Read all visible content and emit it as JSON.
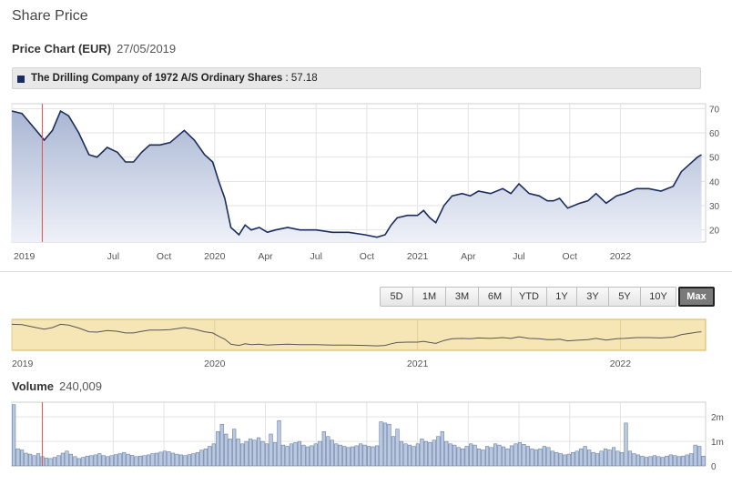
{
  "header": {
    "title": "Share Price"
  },
  "price_chart": {
    "label": "Price Chart (EUR)",
    "date": "27/05/2019",
    "legend": {
      "series_name": "The Drilling Company of 1972 A/S Ordinary Shares",
      "separator": ":",
      "value": "57.18",
      "color": "#1b2c5e"
    }
  },
  "range_buttons": [
    {
      "label": "5D",
      "active": false
    },
    {
      "label": "1M",
      "active": false
    },
    {
      "label": "3M",
      "active": false
    },
    {
      "label": "6M",
      "active": false
    },
    {
      "label": "YTD",
      "active": false
    },
    {
      "label": "1Y",
      "active": false
    },
    {
      "label": "3Y",
      "active": false
    },
    {
      "label": "5Y",
      "active": false
    },
    {
      "label": "10Y",
      "active": false
    },
    {
      "label": "Max",
      "active": true
    }
  ],
  "volume": {
    "label": "Volume",
    "value": "240,009"
  },
  "chart_data": [
    {
      "type": "area",
      "role": "price",
      "x_ticks": [
        "2019",
        "Jul",
        "Oct",
        "2020",
        "Apr",
        "Jul",
        "Oct",
        "2021",
        "Apr",
        "Jul",
        "Oct",
        "2022"
      ],
      "y_ticks": [
        20,
        30,
        40,
        50,
        60,
        70
      ],
      "ylim": [
        15,
        72
      ],
      "xlim": [
        2019.0,
        2022.42
      ],
      "grid": true,
      "colors": {
        "line": "#1b2c5e",
        "fill_top": "#a9b6d3",
        "fill_bottom": "#eef1f8",
        "marker": "#d9534f"
      },
      "marker_x": 2019.15,
      "x": [
        2019.0,
        2019.05,
        2019.1,
        2019.13,
        2019.16,
        2019.2,
        2019.24,
        2019.28,
        2019.33,
        2019.38,
        2019.42,
        2019.47,
        2019.52,
        2019.56,
        2019.6,
        2019.64,
        2019.68,
        2019.73,
        2019.78,
        2019.85,
        2019.9,
        2019.95,
        2019.99,
        2020.02,
        2020.05,
        2020.08,
        2020.12,
        2020.15,
        2020.18,
        2020.22,
        2020.26,
        2020.3,
        2020.36,
        2020.42,
        2020.5,
        2020.58,
        2020.66,
        2020.74,
        2020.8,
        2020.84,
        2020.87,
        2020.9,
        2020.95,
        2021.0,
        2021.03,
        2021.06,
        2021.09,
        2021.13,
        2021.17,
        2021.22,
        2021.26,
        2021.3,
        2021.36,
        2021.42,
        2021.46,
        2021.5,
        2021.55,
        2021.6,
        2021.64,
        2021.67,
        2021.7,
        2021.74,
        2021.8,
        2021.84,
        2021.88,
        2021.93,
        2021.98,
        2022.02,
        2022.08,
        2022.14,
        2022.2,
        2022.26,
        2022.3,
        2022.34,
        2022.38,
        2022.4
      ],
      "y": [
        69,
        68,
        63,
        60,
        57,
        61,
        69,
        67,
        60,
        51,
        50,
        54,
        52,
        48,
        48,
        52,
        55,
        55,
        56,
        61,
        57,
        51,
        48,
        40,
        33,
        21,
        18,
        22,
        20,
        21,
        19,
        20,
        21,
        20,
        20,
        19,
        19,
        18,
        17,
        18,
        22,
        25,
        26,
        26,
        28,
        25,
        23,
        30,
        34,
        35,
        34,
        36,
        35,
        37,
        35,
        39,
        35,
        34,
        32,
        32,
        33,
        29,
        31,
        32,
        35,
        31,
        34,
        35,
        37,
        37,
        36,
        38,
        44,
        47,
        50,
        51
      ],
      "title": "",
      "xlabel": "",
      "ylabel": ""
    },
    {
      "type": "area",
      "role": "navigator",
      "x_ticks": [
        "2019",
        "2020",
        "2021",
        "2022"
      ],
      "colors": {
        "background": "#f7e6b5",
        "border": "#d8b45a",
        "line": "#555555"
      }
    },
    {
      "type": "bar",
      "role": "volume",
      "y_ticks": [
        "2m",
        "1m",
        "0"
      ],
      "y_tick_values": [
        2000000,
        1000000,
        0
      ],
      "ylim": [
        0,
        2600000
      ],
      "colors": {
        "bar": "#b7c8e0",
        "bar_border": "#5a6f96"
      },
      "values": [
        2500000,
        700000,
        650000,
        520000,
        480000,
        420000,
        500000,
        380000,
        320000,
        300000,
        350000,
        420000,
        520000,
        600000,
        480000,
        380000,
        300000,
        350000,
        400000,
        420000,
        450000,
        500000,
        420000,
        380000,
        420000,
        460000,
        500000,
        550000,
        480000,
        430000,
        380000,
        400000,
        420000,
        450000,
        500000,
        520000,
        560000,
        600000,
        580000,
        520000,
        480000,
        450000,
        420000,
        460000,
        500000,
        550000,
        640000,
        700000,
        800000,
        900000,
        1400000,
        1700000,
        1300000,
        1100000,
        1500000,
        1100000,
        900000,
        1000000,
        1100000,
        1050000,
        1150000,
        1000000,
        900000,
        1300000,
        950000,
        1850000,
        850000,
        800000,
        900000,
        950000,
        1000000,
        850000,
        780000,
        820000,
        900000,
        1000000,
        1400000,
        1200000,
        1050000,
        900000,
        850000,
        800000,
        750000,
        780000,
        820000,
        900000,
        850000,
        800000,
        780000,
        820000,
        1800000,
        1750000,
        1700000,
        1200000,
        1500000,
        1000000,
        900000,
        850000,
        800000,
        900000,
        1100000,
        1000000,
        950000,
        1050000,
        1200000,
        1400000,
        1000000,
        900000,
        850000,
        750000,
        700000,
        800000,
        900000,
        850000,
        700000,
        650000,
        800000,
        750000,
        900000,
        850000,
        780000,
        700000,
        820000,
        900000,
        950000,
        880000,
        800000,
        700000,
        650000,
        700000,
        800000,
        750000,
        600000,
        550000,
        500000,
        450000,
        480000,
        550000,
        600000,
        700000,
        800000,
        650000,
        550000,
        500000,
        600000,
        700000,
        650000,
        750000,
        600000,
        550000,
        1750000,
        600000,
        500000,
        450000,
        400000,
        350000,
        380000,
        420000,
        380000,
        350000,
        400000,
        450000,
        420000,
        380000,
        400000,
        450000,
        500000,
        850000,
        800000,
        400000
      ]
    }
  ]
}
